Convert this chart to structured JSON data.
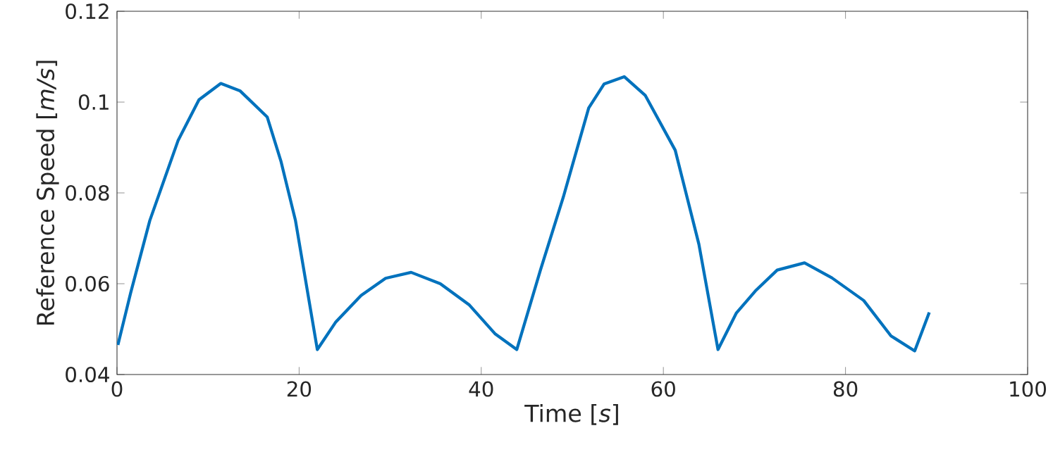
{
  "chart_data": {
    "type": "line",
    "xlabel": "Time [*s*]",
    "ylabel": "Reference Speed [*m/s*]",
    "xlim": [
      0,
      100
    ],
    "ylim": [
      0.04,
      0.12
    ],
    "xticks": [
      0,
      20,
      40,
      60,
      80,
      100
    ],
    "yticks": [
      0.04,
      0.06,
      0.08,
      0.1,
      0.12
    ],
    "grid": false,
    "marker": "none",
    "line_style": "solid",
    "series": [
      {
        "color": "#0072bd",
        "x": [
          0.1,
          1.5,
          3.6,
          6.7,
          9,
          11.4,
          13.5,
          16.5,
          18,
          19.6,
          22.0,
          24,
          26.8,
          29.5,
          32.3,
          35.5,
          38.7,
          41.5,
          43.9,
          46.5,
          49.0,
          51.8,
          53.5,
          55.7,
          58,
          61.3,
          63.9,
          66.0,
          68,
          70.1,
          72.5,
          75.5,
          78.5,
          82.0,
          85,
          87.6,
          89.2
        ],
        "values": [
          0.0465,
          0.058,
          0.0739,
          0.0915,
          0.1005,
          0.1041,
          0.1025,
          0.0967,
          0.087,
          0.0739,
          0.0455,
          0.0515,
          0.0574,
          0.0612,
          0.0625,
          0.06,
          0.0553,
          0.049,
          0.0455,
          0.063,
          0.079,
          0.0987,
          0.104,
          0.1056,
          0.1015,
          0.0894,
          0.0687,
          0.0455,
          0.0535,
          0.0584,
          0.063,
          0.0646,
          0.0613,
          0.0563,
          0.0485,
          0.0452,
          0.0537
        ]
      }
    ]
  }
}
